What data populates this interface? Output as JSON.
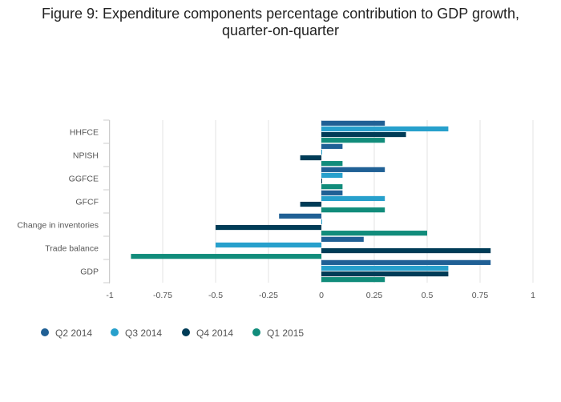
{
  "chart_data": {
    "type": "bar",
    "orientation": "horizontal",
    "title_line1": "Figure 9: Expenditure components percentage contribution to GDP growth,",
    "title_line2": "quarter-on-quarter",
    "xlabel": "",
    "ylabel": "",
    "xlim": [
      -1,
      1
    ],
    "x_ticks": [
      -1,
      -0.75,
      -0.5,
      -0.25,
      0,
      0.25,
      0.5,
      0.75,
      1
    ],
    "x_tick_labels": [
      "-1",
      "-0.75",
      "-0.5",
      "-0.25",
      "0",
      "0.25",
      "0.5",
      "0.75",
      "1"
    ],
    "grid": true,
    "legend_position": "bottom-left",
    "categories": [
      "HHFCE",
      "NPISH",
      "GGFCE",
      "GFCF",
      "Change in inventories",
      "Trade balance",
      "GDP"
    ],
    "series": [
      {
        "name": "Q2 2014",
        "color": "#206095",
        "values": [
          0.3,
          0.1,
          0.3,
          0.1,
          -0.2,
          0.2,
          0.8
        ]
      },
      {
        "name": "Q3 2014",
        "color": "#27a0cc",
        "values": [
          0.6,
          0.0,
          0.1,
          0.3,
          0.0,
          -0.5,
          0.6
        ]
      },
      {
        "name": "Q4 2014",
        "color": "#003c57",
        "values": [
          0.4,
          -0.1,
          0.0,
          -0.1,
          -0.5,
          0.8,
          0.6
        ]
      },
      {
        "name": "Q1 2015",
        "color": "#118c7b",
        "values": [
          0.3,
          0.1,
          0.1,
          0.3,
          0.5,
          -0.9,
          0.3
        ]
      }
    ]
  }
}
